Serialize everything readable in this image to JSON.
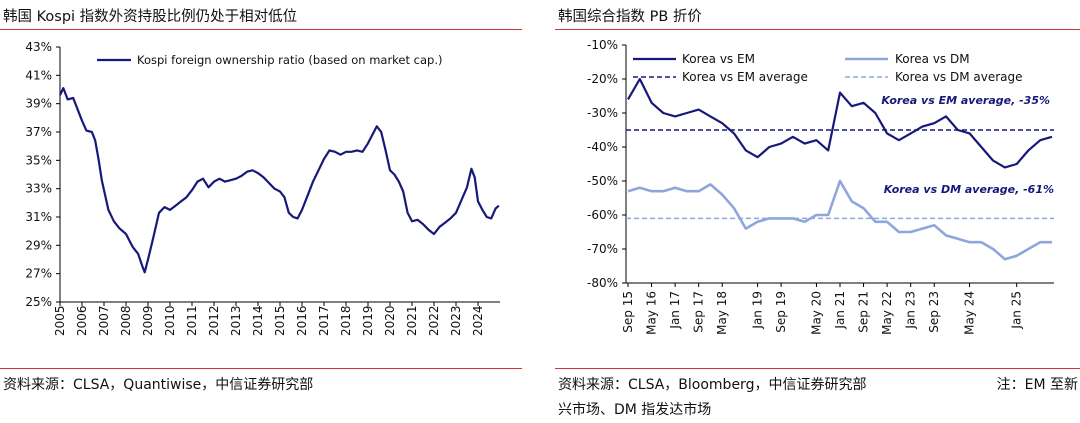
{
  "colors": {
    "navy": "#16197a",
    "light_blue": "#8fa6dc",
    "rule_red": "#d9313a"
  },
  "left": {
    "title": "韩国 Kospi 指数外资持股比例仍处于相对低位",
    "source": "资料来源：CLSA，Quantiwise，中信证券研究部"
  },
  "right": {
    "title": "韩国综合指数 PB 折价",
    "source_line1": "资料来源：CLSA，Bloomberg，中信证券研究部",
    "note_line1": "注：EM 至新",
    "source_line2": "兴市场、DM 指发达市场"
  },
  "chart_data": [
    {
      "type": "line",
      "title": "韩国 Kospi 指数外资持股比例仍处于相对低位",
      "xlabel": "",
      "ylabel": "",
      "x_ticks": [
        "2005",
        "2006",
        "2007",
        "2008",
        "2009",
        "2010",
        "2011",
        "2012",
        "2013",
        "2014",
        "2015",
        "2016",
        "2017",
        "2018",
        "2019",
        "2020",
        "2021",
        "2022",
        "2023",
        "2024"
      ],
      "y_ticks": [
        "43%",
        "41%",
        "39%",
        "37%",
        "35%",
        "33%",
        "31%",
        "29%",
        "27%",
        "25%"
      ],
      "xlim": [
        2005,
        2025
      ],
      "ylim": [
        25,
        43
      ],
      "legend": "top-left",
      "grid": false,
      "series": [
        {
          "name": "Kospi foreign ownership ratio (based on market cap.)",
          "color": "#16197a",
          "x": [
            2005.0,
            2005.15,
            2005.35,
            2005.6,
            2005.8,
            2006.0,
            2006.2,
            2006.45,
            2006.6,
            2006.75,
            2006.9,
            2007.0,
            2007.2,
            2007.45,
            2007.7,
            2008.0,
            2008.3,
            2008.55,
            2008.75,
            2008.85,
            2009.0,
            2009.25,
            2009.5,
            2009.75,
            2010.0,
            2010.25,
            2010.5,
            2010.75,
            2011.0,
            2011.25,
            2011.5,
            2011.75,
            2012.0,
            2012.25,
            2012.5,
            2012.75,
            2013.0,
            2013.25,
            2013.5,
            2013.75,
            2014.0,
            2014.25,
            2014.5,
            2014.75,
            2015.0,
            2015.2,
            2015.4,
            2015.6,
            2015.8,
            2016.0,
            2016.25,
            2016.5,
            2016.75,
            2017.0,
            2017.25,
            2017.5,
            2017.75,
            2018.0,
            2018.25,
            2018.5,
            2018.75,
            2019.0,
            2019.2,
            2019.4,
            2019.6,
            2019.8,
            2020.0,
            2020.2,
            2020.4,
            2020.6,
            2020.8,
            2021.0,
            2021.25,
            2021.5,
            2021.75,
            2022.0,
            2022.25,
            2022.5,
            2022.75,
            2023.0,
            2023.25,
            2023.5,
            2023.7,
            2023.85,
            2024.0,
            2024.2,
            2024.4,
            2024.6,
            2024.8,
            2024.95
          ],
          "values": [
            39.6,
            40.1,
            39.3,
            39.4,
            38.6,
            37.8,
            37.1,
            37.0,
            36.4,
            35.1,
            33.6,
            32.9,
            31.5,
            30.7,
            30.2,
            29.8,
            28.9,
            28.4,
            27.5,
            27.1,
            28.0,
            29.6,
            31.3,
            31.7,
            31.5,
            31.8,
            32.1,
            32.4,
            32.9,
            33.5,
            33.7,
            33.1,
            33.5,
            33.7,
            33.5,
            33.6,
            33.7,
            33.9,
            34.2,
            34.3,
            34.1,
            33.8,
            33.4,
            33.0,
            32.8,
            32.4,
            31.3,
            31.0,
            30.9,
            31.5,
            32.5,
            33.5,
            34.3,
            35.1,
            35.7,
            35.6,
            35.4,
            35.6,
            35.6,
            35.7,
            35.6,
            36.2,
            36.8,
            37.4,
            37.0,
            35.7,
            34.3,
            34.0,
            33.5,
            32.8,
            31.3,
            30.7,
            30.8,
            30.5,
            30.1,
            29.8,
            30.3,
            30.6,
            30.9,
            31.3,
            32.2,
            33.1,
            34.4,
            33.8,
            32.1,
            31.5,
            31.0,
            30.9,
            31.6,
            31.8
          ]
        }
      ]
    },
    {
      "type": "line",
      "title": "韩国综合指数 PB 折价",
      "xlabel": "",
      "ylabel": "",
      "x_ticks": [
        "Sep 15",
        "May 16",
        "Jan 17",
        "Sep 17",
        "May 18",
        "Jan 19",
        "Sep 19",
        "May 20",
        "Jan 21",
        "Sep 21",
        "May 22",
        "Jan 23",
        "Sep 23",
        "May 24",
        "Jan 25"
      ],
      "y_ticks": [
        "-10%",
        "-20%",
        "-30%",
        "-40%",
        "-50%",
        "-60%",
        "-70%",
        "-80%"
      ],
      "ylim": [
        -80,
        -10
      ],
      "legend": "top",
      "grid": false,
      "annotations": [
        "Korea vs EM average, -35%",
        "Korea vs DM average, -61%"
      ],
      "x": [
        "Sep 15",
        "Jan 16",
        "May 16",
        "Sep 16",
        "Jan 17",
        "May 17",
        "Sep 17",
        "Jan 18",
        "May 18",
        "Jul 18",
        "Sep 18",
        "Jan 19",
        "May 19",
        "Sep 19",
        "Jan 20",
        "Mar 20",
        "May 20",
        "Sep 20",
        "Jan 21",
        "May 21",
        "Sep 21",
        "Jan 22",
        "May 22",
        "Sep 22",
        "Jan 23",
        "May 23",
        "Sep 23",
        "Jan 24",
        "Mar 24",
        "May 24",
        "Jul 24",
        "Sep 24",
        "Nov 24",
        "Jan 25",
        "Mar 25",
        "May 25",
        "Jul 25"
      ],
      "series": [
        {
          "name": "Korea vs EM",
          "color": "#16197a",
          "values": [
            -26,
            -20,
            -27,
            -30,
            -31,
            -30,
            -29,
            -31,
            -33,
            -36,
            -41,
            -43,
            -40,
            -39,
            -37,
            -39,
            -38,
            -41,
            -24,
            -28,
            -27,
            -30,
            -36,
            -38,
            -36,
            -34,
            -33,
            -31,
            -35,
            -36,
            -40,
            -44,
            -46,
            -45,
            -41,
            -38,
            -37
          ]
        },
        {
          "name": "Korea vs DM",
          "color": "#8fa6dc",
          "values": [
            -53,
            -52,
            -53,
            -53,
            -52,
            -53,
            -53,
            -51,
            -54,
            -58,
            -64,
            -62,
            -61,
            -61,
            -61,
            -62,
            -60,
            -60,
            -50,
            -56,
            -58,
            -62,
            -62,
            -65,
            -65,
            -64,
            -63,
            -66,
            -67,
            -68,
            -68,
            -70,
            -73,
            -72,
            -70,
            -68,
            -68
          ]
        },
        {
          "name": "Korea vs EM average",
          "color": "#16197a",
          "dashed": true,
          "constant": -35
        },
        {
          "name": "Korea vs DM average",
          "color": "#8fa6dc",
          "dashed": true,
          "constant": -61
        }
      ]
    }
  ]
}
